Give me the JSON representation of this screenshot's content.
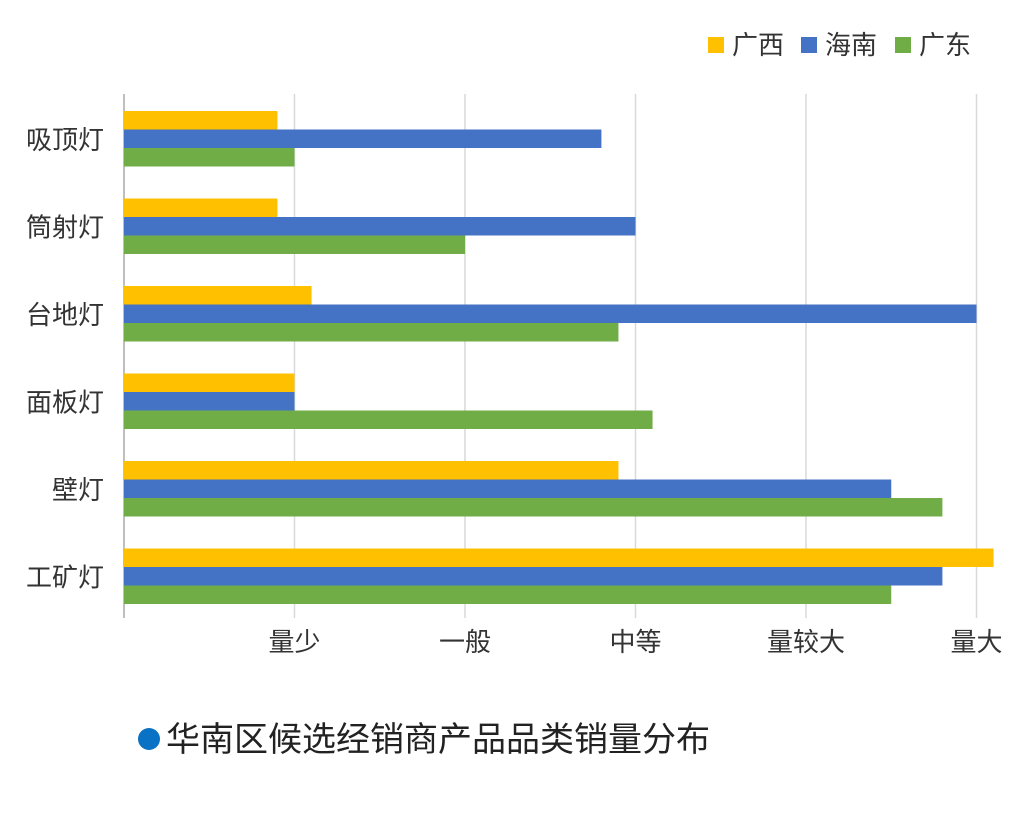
{
  "chart_data": {
    "type": "bar",
    "orientation": "horizontal",
    "categories": [
      "吸顶灯",
      "筒射灯",
      "台地灯",
      "面板灯",
      "壁灯",
      "工矿灯"
    ],
    "x_ticks": [
      "量少",
      "一般",
      "中等",
      "量较大",
      "量大"
    ],
    "xlim": [
      0,
      5
    ],
    "series": [
      {
        "name": "广西",
        "color": "#FFC000",
        "values": [
          0.9,
          0.9,
          1.1,
          1.0,
          2.9,
          5.1
        ]
      },
      {
        "name": "海南",
        "color": "#4472C4",
        "values": [
          2.8,
          3.0,
          5.0,
          1.0,
          4.5,
          4.8
        ]
      },
      {
        "name": "广东",
        "color": "#70AD47",
        "values": [
          1.0,
          2.0,
          2.9,
          3.1,
          4.8,
          4.5
        ]
      }
    ],
    "legend_position": "top-right",
    "grid": true
  },
  "caption": {
    "text": "华南区候选经销商产品品类销量分布",
    "dot_color": "#0A72C4"
  }
}
